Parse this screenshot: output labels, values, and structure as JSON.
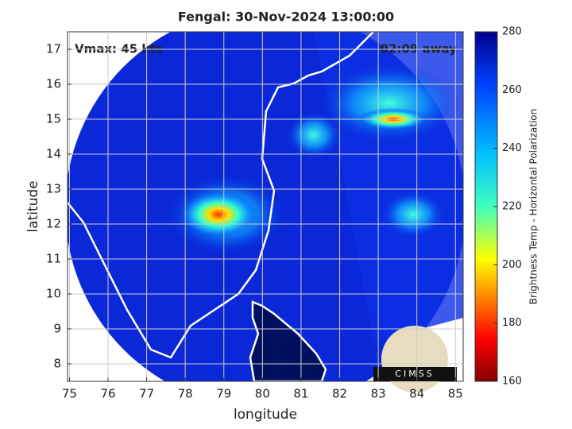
{
  "chart_data": {
    "type": "map",
    "title": "Fengal: 30-Nov-2024 13:00:00",
    "x_label": "longitude",
    "y_label": "latitude",
    "xlim": [
      74.95,
      85.2
    ],
    "xticks": [
      75,
      76,
      77,
      78,
      79,
      80,
      81,
      82,
      83,
      84,
      85
    ],
    "ylim": [
      7.5,
      17.5
    ],
    "yticks": [
      8,
      9,
      10,
      11,
      12,
      13,
      14,
      15,
      16,
      17
    ],
    "grid": true,
    "annotations": [
      "Vmax: 45 kts",
      "02:09 away"
    ],
    "logo": "CIMSS",
    "colorbar": {
      "label": "Brightness Temp - Horizontal Polarization",
      "lim": [
        160,
        280
      ],
      "ticks": [
        160,
        180,
        200,
        220,
        240,
        260,
        280
      ]
    }
  }
}
